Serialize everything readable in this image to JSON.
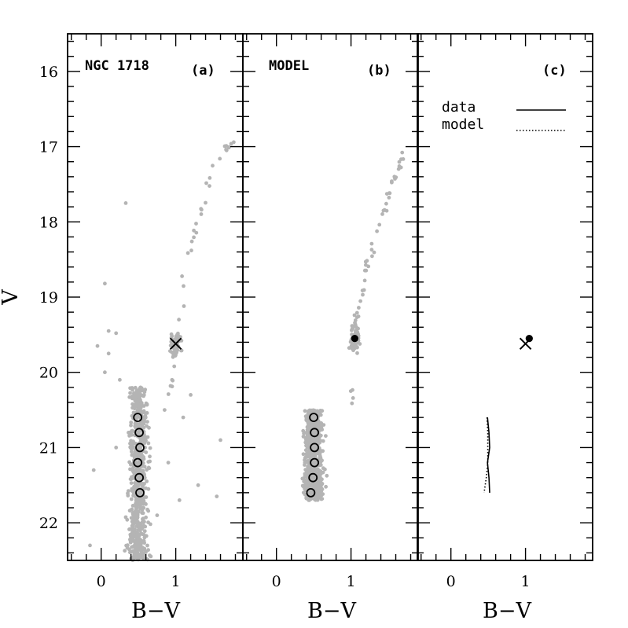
{
  "chart_data": [
    {
      "panel": "a",
      "type": "scatter",
      "label": "NGC 1718",
      "tag": "(a)",
      "xlabel": "B−V",
      "ylabel": "V",
      "xlim": [
        -0.45,
        1.9
      ],
      "ylim": [
        22.5,
        15.5
      ],
      "y_inverted": true,
      "xticks": [
        0,
        1
      ],
      "yticks": [
        16,
        17,
        18,
        19,
        20,
        21,
        22
      ],
      "point_color": "#b4b4b4",
      "marker_color": "#000000",
      "cross": {
        "x": 1.0,
        "y": 19.62
      },
      "open_circles": [
        {
          "x": 0.49,
          "y": 20.6
        },
        {
          "x": 0.51,
          "y": 20.8
        },
        {
          "x": 0.52,
          "y": 21.0
        },
        {
          "x": 0.49,
          "y": 21.2
        },
        {
          "x": 0.51,
          "y": 21.4
        },
        {
          "x": 0.52,
          "y": 21.6
        }
      ],
      "red_clump": {
        "x": 1.0,
        "y": 19.6,
        "dx": 0.14,
        "dy": 0.28,
        "n": 50
      },
      "giant_branch": [
        [
          0.9,
          20.3
        ],
        [
          0.95,
          20.05
        ],
        [
          1.0,
          19.65
        ],
        [
          1.05,
          19.3
        ],
        [
          1.08,
          18.95
        ],
        [
          1.12,
          18.7
        ],
        [
          1.2,
          18.4
        ],
        [
          1.28,
          18.1
        ],
        [
          1.35,
          17.8
        ],
        [
          1.45,
          17.5
        ],
        [
          1.55,
          17.25
        ],
        [
          1.65,
          17.05
        ],
        [
          1.75,
          17.0
        ]
      ],
      "rgb_n": 40,
      "ms": {
        "x": 0.5,
        "ytop": 20.2,
        "ybottom": 22.5,
        "width": 0.18,
        "n": 650
      },
      "stragglers": [
        [
          0.33,
          17.75
        ],
        [
          0.05,
          18.82
        ],
        [
          -0.05,
          19.65
        ],
        [
          0.1,
          19.45
        ],
        [
          0.2,
          19.48
        ],
        [
          0.05,
          20.0
        ],
        [
          0.25,
          20.1
        ],
        [
          0.1,
          19.75
        ],
        [
          1.6,
          20.9
        ],
        [
          1.55,
          21.65
        ],
        [
          1.05,
          21.7
        ],
        [
          1.2,
          20.3
        ],
        [
          -0.1,
          21.3
        ],
        [
          -0.15,
          22.3
        ],
        [
          1.1,
          20.6
        ],
        [
          0.9,
          21.2
        ],
        [
          0.85,
          20.5
        ],
        [
          1.3,
          21.5
        ],
        [
          0.2,
          21.0
        ],
        [
          0.75,
          21.9
        ]
      ]
    },
    {
      "panel": "b",
      "type": "scatter",
      "label": "MODEL",
      "tag": "(b)",
      "xlabel": "B−V",
      "xlim": [
        -0.45,
        1.9
      ],
      "ylim": [
        22.5,
        15.5
      ],
      "y_inverted": true,
      "xticks": [
        0,
        1
      ],
      "point_color": "#b4b4b4",
      "marker_color": "#000000",
      "filled_dot": {
        "x": 1.05,
        "y": 19.55
      },
      "open_circles": [
        {
          "x": 0.5,
          "y": 20.6
        },
        {
          "x": 0.51,
          "y": 20.8
        },
        {
          "x": 0.51,
          "y": 21.0
        },
        {
          "x": 0.51,
          "y": 21.2
        },
        {
          "x": 0.49,
          "y": 21.4
        },
        {
          "x": 0.46,
          "y": 21.6
        }
      ],
      "red_clump": {
        "x": 1.05,
        "y": 19.55,
        "dx": 0.12,
        "dy": 0.32,
        "n": 90
      },
      "giant_branch": [
        [
          1.0,
          20.4
        ],
        [
          1.04,
          19.8
        ],
        [
          1.08,
          19.3
        ],
        [
          1.12,
          19.0
        ],
        [
          1.2,
          18.7
        ],
        [
          1.28,
          18.4
        ],
        [
          1.38,
          18.0
        ],
        [
          1.5,
          17.7
        ],
        [
          1.6,
          17.4
        ],
        [
          1.7,
          17.1
        ]
      ],
      "rgb_n": 55,
      "ms": {
        "x": 0.5,
        "ytop": 20.5,
        "ybottom": 21.7,
        "width": 0.17,
        "n": 700
      }
    },
    {
      "panel": "c",
      "type": "line",
      "tag": "(c)",
      "xlabel": "B−V",
      "xlim": [
        -0.45,
        1.9
      ],
      "ylim": [
        22.5,
        15.5
      ],
      "y_inverted": true,
      "xticks": [
        0,
        1
      ],
      "series": [
        {
          "name": "data",
          "style": "solid",
          "x": [
            0.49,
            0.51,
            0.52,
            0.49,
            0.51,
            0.52
          ],
          "y": [
            20.6,
            20.8,
            21.0,
            21.2,
            21.4,
            21.6
          ]
        },
        {
          "name": "model",
          "style": "dotted",
          "x": [
            0.5,
            0.51,
            0.51,
            0.51,
            0.49,
            0.46
          ],
          "y": [
            20.6,
            20.8,
            21.0,
            21.2,
            21.4,
            21.6
          ]
        }
      ],
      "cross": {
        "x": 1.0,
        "y": 19.62
      },
      "filled_dot": {
        "x": 1.05,
        "y": 19.55
      },
      "legend": [
        "data",
        "model"
      ],
      "legend_position": "upper-right"
    }
  ]
}
